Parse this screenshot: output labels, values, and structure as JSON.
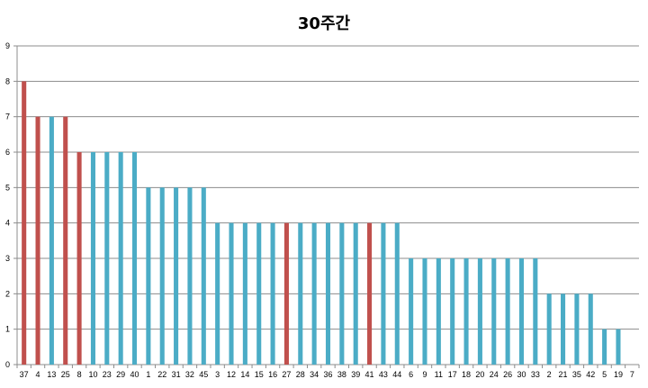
{
  "chart_data": {
    "type": "bar",
    "title": "30주간",
    "xlabel": "",
    "ylabel": "",
    "ylim": [
      0,
      9
    ],
    "yticks": [
      0,
      1,
      2,
      3,
      4,
      5,
      6,
      7,
      8,
      9
    ],
    "grid": true,
    "legend": "none",
    "colors": {
      "highlight": "#c0504d",
      "normal": "#4bacc6"
    },
    "categories": [
      "37",
      "4",
      "13",
      "25",
      "8",
      "10",
      "23",
      "29",
      "40",
      "1",
      "22",
      "31",
      "32",
      "45",
      "3",
      "12",
      "14",
      "15",
      "16",
      "27",
      "28",
      "34",
      "36",
      "38",
      "39",
      "41",
      "43",
      "44",
      "6",
      "9",
      "11",
      "17",
      "18",
      "20",
      "24",
      "26",
      "30",
      "33",
      "2",
      "21",
      "35",
      "42",
      "5",
      "19",
      "7"
    ],
    "values": [
      8,
      7,
      7,
      7,
      6,
      6,
      6,
      6,
      6,
      5,
      5,
      5,
      5,
      5,
      4,
      4,
      4,
      4,
      4,
      4,
      4,
      4,
      4,
      4,
      4,
      4,
      4,
      4,
      3,
      3,
      3,
      3,
      3,
      3,
      3,
      3,
      3,
      3,
      2,
      2,
      2,
      2,
      1,
      1,
      0
    ],
    "highlighted": [
      "37",
      "4",
      "25",
      "8",
      "27",
      "41"
    ]
  }
}
